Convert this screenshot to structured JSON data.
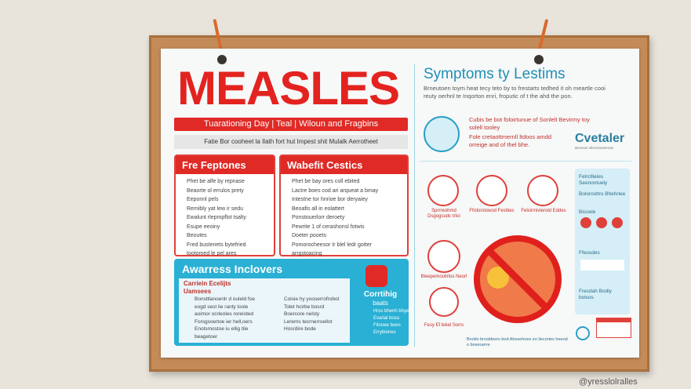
{
  "title": "MEASLES",
  "banner": "Tuarationing Day  |  Teal  |  Wiloun and Fragbins",
  "tagline": "Fatie Bor cooheet la Ilath fort hut Impest shit Mulalk Aerrotheet",
  "panel_left": {
    "title": "Fre Feptones",
    "items": [
      "Phet be alfe by repnase",
      "Beaorte ol errulos prety",
      "Eeponnl pels",
      "Remibly yat lew ir sedu",
      "Ewalunt rlepmpflot tsalty",
      "Esupe eeoiny",
      "Beoutes",
      "Fred bustenets bytefried",
      "tootomed le pel ares"
    ]
  },
  "panel_right": {
    "title": "Wabefit Cestics",
    "items": [
      "Phet be bay ores coll ebited",
      "Lactre boes cod ari arqueat a bmay",
      "Intestne tor hnrioe bor deryaiey",
      "Beoafis all in eolattert",
      "Ponstouerlorr deroety",
      "Pewrite 1 of cerashonsl fotwis",
      "Doeter pooets",
      "Pomorocheesor Ir blel ledr gotter",
      "arrgstoacing"
    ]
  },
  "awareness": {
    "title": "Awarress Inclovers",
    "subtitle": "Carriein Ecelijts Uamsees",
    "items_a": [
      "Bonsttlanoenlr d ouleld foe",
      "eogd sest lie ranty loole",
      "aoimor ocrleoles roreioted",
      "Forsgsoertoe ier hell,oers",
      "Enotsmostoe iu ellig tile",
      "beagetoer"
    ],
    "items_b": [
      "Coisie hy yooserrofrobot",
      "Tolet hcirbe bosrd",
      "Boercore nelsty",
      "Lerems tecrnerroellot",
      "Hosrdire bode"
    ],
    "box_title": "Corrtihig",
    "box_subtitle": "baats",
    "box_items": [
      "Hrss bhenh bhyee",
      "Evarlal bosa",
      "Fitnoee boes",
      "Errybiones"
    ]
  },
  "symptoms": {
    "title": "Symptoms ty Lestims",
    "intro": "Brneutoen toym heat tecy teto by to frestarts tedhed it oh meartle cooi reuty oerhnl te Inqorton enri, froputic of t the ahd the pon.",
    "person_text": "Cubis be bot foloirtunue of Sonlelt Bevirmy toy solell tooley",
    "person_text2": "Fole cretaottmernll ltdoos amdd orreige and of thel bhe.",
    "brand": "Cvetaler",
    "brand_sub": "Beossar ollevolooeenots",
    "icons": [
      "Sprrreohmd Dsgogsudc trtoi",
      "Ffrdorslowod Festtiec",
      "Felsirmivlerold Eddes"
    ],
    "icons2": [
      "Bleepemoolirlos Neorl",
      "Fesy Ef lekel Sorrs"
    ],
    "side": [
      "Fetrcllleles Seenontuely",
      "Bolorosttro Bhehrlee",
      "Bicoele",
      "Ffeosdes",
      "Frecdah Bodiy bolsos"
    ],
    "footer": "Bnotlo brosldeers bod Ahesehoes eo llecortes heeod o boeeuerre"
  },
  "watermark": "@yresslolralles"
}
